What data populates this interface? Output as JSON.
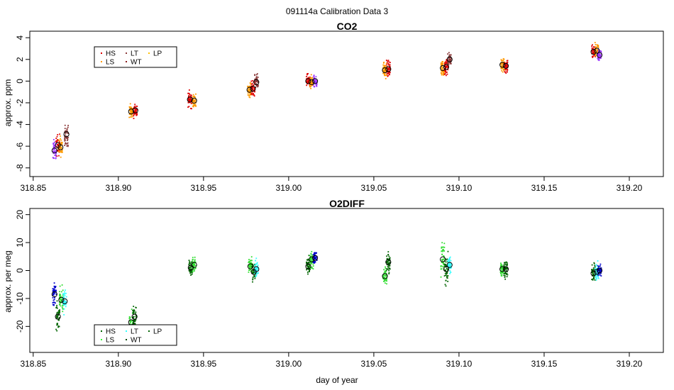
{
  "figure": {
    "title": "091114a   Calibration Data 3",
    "xlabel": "day of year"
  },
  "chart_data": [
    {
      "type": "scatter",
      "title": "CO2",
      "ylabel": "approx. ppm",
      "xlim": [
        318.848,
        319.22
      ],
      "ylim": [
        -8.8,
        4.6
      ],
      "xticks": [
        "318.85",
        "318.90",
        "318.95",
        "319.00",
        "319.05",
        "319.10",
        "319.15",
        "319.20"
      ],
      "yticks": [
        "-8",
        "-6",
        "-4",
        "-2",
        "0",
        "2",
        "4"
      ],
      "legend": {
        "position": "top-left",
        "entries": [
          {
            "name": "HS",
            "color": "#DF0000"
          },
          {
            "name": "LT",
            "color": "#8B3A3A"
          },
          {
            "name": "LP",
            "color": "#FFC000"
          },
          {
            "name": "LS",
            "color": "#FF9900"
          },
          {
            "name": "WT",
            "color": "#8B1A1A"
          }
        ]
      },
      "clusters": [
        {
          "x": 318.8625,
          "y": -6.4,
          "spread": 0.8,
          "color": "#9933FF"
        },
        {
          "x": 318.8645,
          "y": -5.9,
          "spread": 0.8,
          "color": "#DF0000"
        },
        {
          "x": 318.866,
          "y": -6.1,
          "spread": 0.8,
          "color": "#FF9900"
        },
        {
          "x": 318.8695,
          "y": -5.0,
          "spread": 0.8,
          "color": "#8B3A3A"
        },
        {
          "x": 318.9075,
          "y": -2.8,
          "spread": 0.6,
          "color": "#FF9900"
        },
        {
          "x": 318.91,
          "y": -2.7,
          "spread": 0.6,
          "color": "#DF0000"
        },
        {
          "x": 318.942,
          "y": -1.7,
          "spread": 0.6,
          "color": "#DF0000"
        },
        {
          "x": 318.9445,
          "y": -1.8,
          "spread": 0.6,
          "color": "#FF9900"
        },
        {
          "x": 318.977,
          "y": -0.8,
          "spread": 0.6,
          "color": "#FF9900"
        },
        {
          "x": 318.979,
          "y": -0.7,
          "spread": 0.6,
          "color": "#DF0000"
        },
        {
          "x": 318.981,
          "y": -0.1,
          "spread": 0.6,
          "color": "#8B3A3A"
        },
        {
          "x": 319.0115,
          "y": 0.0,
          "spread": 0.5,
          "color": "#DF0000"
        },
        {
          "x": 319.0135,
          "y": -0.1,
          "spread": 0.5,
          "color": "#FF9900"
        },
        {
          "x": 319.0155,
          "y": 0.0,
          "spread": 0.5,
          "color": "#9933FF"
        },
        {
          "x": 319.0565,
          "y": 1.0,
          "spread": 0.6,
          "color": "#FF9900"
        },
        {
          "x": 319.0585,
          "y": 1.1,
          "spread": 0.6,
          "color": "#DF0000"
        },
        {
          "x": 319.0905,
          "y": 1.2,
          "spread": 0.6,
          "color": "#FF9900"
        },
        {
          "x": 319.0925,
          "y": 1.3,
          "spread": 0.6,
          "color": "#DF0000"
        },
        {
          "x": 319.0945,
          "y": 2.0,
          "spread": 0.5,
          "color": "#8B3A3A"
        },
        {
          "x": 319.1255,
          "y": 1.5,
          "spread": 0.6,
          "color": "#FF9900"
        },
        {
          "x": 319.1275,
          "y": 1.4,
          "spread": 0.6,
          "color": "#DF0000"
        },
        {
          "x": 319.179,
          "y": 2.7,
          "spread": 0.6,
          "color": "#DF0000"
        },
        {
          "x": 319.181,
          "y": 2.8,
          "spread": 0.6,
          "color": "#FF9900"
        },
        {
          "x": 319.1825,
          "y": 2.4,
          "spread": 0.5,
          "color": "#9933FF"
        }
      ],
      "means": [
        {
          "x": 318.8625,
          "y": -6.4
        },
        {
          "x": 318.8645,
          "y": -5.9
        },
        {
          "x": 318.866,
          "y": -6.1
        },
        {
          "x": 318.8695,
          "y": -4.9
        },
        {
          "x": 318.9075,
          "y": -2.8
        },
        {
          "x": 318.91,
          "y": -2.7
        },
        {
          "x": 318.942,
          "y": -1.7
        },
        {
          "x": 318.9445,
          "y": -1.8
        },
        {
          "x": 318.977,
          "y": -0.8
        },
        {
          "x": 318.979,
          "y": -0.7
        },
        {
          "x": 318.981,
          "y": -0.1
        },
        {
          "x": 319.0115,
          "y": 0.0
        },
        {
          "x": 319.0135,
          "y": -0.1
        },
        {
          "x": 319.0155,
          "y": 0.0
        },
        {
          "x": 319.0565,
          "y": 1.0
        },
        {
          "x": 319.0585,
          "y": 1.1
        },
        {
          "x": 319.0905,
          "y": 1.2
        },
        {
          "x": 319.0925,
          "y": 1.3
        },
        {
          "x": 319.0945,
          "y": 2.0
        },
        {
          "x": 319.1255,
          "y": 1.5
        },
        {
          "x": 319.1275,
          "y": 1.4
        },
        {
          "x": 319.179,
          "y": 2.7
        },
        {
          "x": 319.181,
          "y": 2.8
        },
        {
          "x": 319.1825,
          "y": 2.4
        }
      ]
    },
    {
      "type": "scatter",
      "title": "O2DIFF",
      "ylabel": "approx. per meg",
      "xlim": [
        318.848,
        319.22
      ],
      "ylim": [
        -29.3,
        22.2
      ],
      "xticks": [
        "318.85",
        "318.90",
        "318.95",
        "319.00",
        "319.05",
        "319.10",
        "319.15",
        "319.20"
      ],
      "yticks": [
        "-20",
        "-10",
        "0",
        "10",
        "20"
      ],
      "legend": {
        "position": "bottom-left",
        "entries": [
          {
            "name": "HS",
            "color": "#006400"
          },
          {
            "name": "LT",
            "color": "#33FFFF"
          },
          {
            "name": "LP",
            "color": "#006400"
          },
          {
            "name": "LS",
            "color": "#33FF33"
          },
          {
            "name": "WT",
            "color": "#004400"
          }
        ]
      },
      "clusters": [
        {
          "x": 318.8625,
          "y": -8.5,
          "spread": 3.5,
          "color": "#0000CC"
        },
        {
          "x": 318.8645,
          "y": -16.5,
          "spread": 3.5,
          "color": "#006400"
        },
        {
          "x": 318.8665,
          "y": -10.5,
          "spread": 3.5,
          "color": "#33DD33"
        },
        {
          "x": 318.8685,
          "y": -11.0,
          "spread": 3.5,
          "color": "#33FFFF"
        },
        {
          "x": 318.9075,
          "y": -18.5,
          "spread": 3.5,
          "color": "#33DD33"
        },
        {
          "x": 318.9095,
          "y": -16.5,
          "spread": 4.0,
          "color": "#006400"
        },
        {
          "x": 318.9425,
          "y": 1.0,
          "spread": 2.5,
          "color": "#006400"
        },
        {
          "x": 318.9445,
          "y": 2.0,
          "spread": 2.5,
          "color": "#33DD33"
        },
        {
          "x": 318.9775,
          "y": 1.5,
          "spread": 2.5,
          "color": "#33DD33"
        },
        {
          "x": 318.9795,
          "y": -0.5,
          "spread": 2.5,
          "color": "#006400"
        },
        {
          "x": 318.981,
          "y": 0.5,
          "spread": 2.5,
          "color": "#33FFFF"
        },
        {
          "x": 319.0115,
          "y": 1.5,
          "spread": 2.5,
          "color": "#006400"
        },
        {
          "x": 319.0135,
          "y": 4.0,
          "spread": 2.5,
          "color": "#33DD33"
        },
        {
          "x": 319.0155,
          "y": 4.5,
          "spread": 2.0,
          "color": "#0000CC"
        },
        {
          "x": 319.0565,
          "y": -2.0,
          "spread": 3.0,
          "color": "#33DD33"
        },
        {
          "x": 319.0585,
          "y": 3.0,
          "spread": 3.0,
          "color": "#006400"
        },
        {
          "x": 319.0905,
          "y": 4.0,
          "spread": 6.0,
          "color": "#33DD33"
        },
        {
          "x": 319.0925,
          "y": 0.5,
          "spread": 5.0,
          "color": "#006400"
        },
        {
          "x": 319.0945,
          "y": 2.0,
          "spread": 2.5,
          "color": "#33FFFF"
        },
        {
          "x": 319.1255,
          "y": 0.5,
          "spread": 2.5,
          "color": "#33DD33"
        },
        {
          "x": 319.1275,
          "y": 0.5,
          "spread": 2.5,
          "color": "#006400"
        },
        {
          "x": 319.179,
          "y": -1.0,
          "spread": 2.5,
          "color": "#006400"
        },
        {
          "x": 319.181,
          "y": -0.5,
          "spread": 2.5,
          "color": "#33FFFF"
        },
        {
          "x": 319.1825,
          "y": 0.0,
          "spread": 2.0,
          "color": "#0000CC"
        }
      ],
      "means": [
        {
          "x": 318.8625,
          "y": -8.5
        },
        {
          "x": 318.8645,
          "y": -16.5
        },
        {
          "x": 318.8665,
          "y": -10.5
        },
        {
          "x": 318.8685,
          "y": -11.0
        },
        {
          "x": 318.9075,
          "y": -18.5
        },
        {
          "x": 318.9095,
          "y": -16.5
        },
        {
          "x": 318.9425,
          "y": 1.0
        },
        {
          "x": 318.9445,
          "y": 2.0
        },
        {
          "x": 318.9775,
          "y": 1.5
        },
        {
          "x": 318.9795,
          "y": -0.5
        },
        {
          "x": 318.981,
          "y": 0.5
        },
        {
          "x": 319.0115,
          "y": 1.5
        },
        {
          "x": 319.0135,
          "y": 4.0
        },
        {
          "x": 319.0155,
          "y": 4.5
        },
        {
          "x": 319.0565,
          "y": -2.0
        },
        {
          "x": 319.0585,
          "y": 3.0
        },
        {
          "x": 319.0905,
          "y": 4.0
        },
        {
          "x": 319.0925,
          "y": 0.5
        },
        {
          "x": 319.0945,
          "y": 2.0
        },
        {
          "x": 319.1255,
          "y": 0.5
        },
        {
          "x": 319.1275,
          "y": 0.5
        },
        {
          "x": 319.179,
          "y": -1.0
        },
        {
          "x": 319.181,
          "y": -0.5
        },
        {
          "x": 319.1825,
          "y": 0.0
        }
      ]
    }
  ]
}
